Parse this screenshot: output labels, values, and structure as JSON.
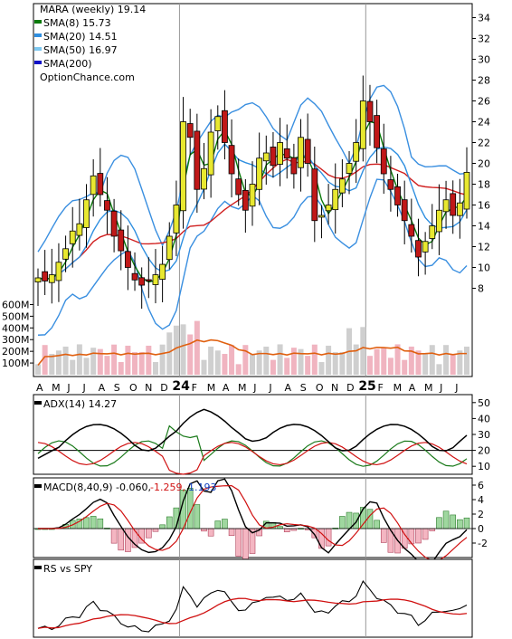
{
  "chart_data": [
    {
      "type": "candlestick",
      "legend": {
        "title": "MARA (weekly) 19.14",
        "items": [
          {
            "label": "SMA(8) 15.73",
            "color": "#0a7a0a"
          },
          {
            "label": "SMA(20) 14.51",
            "color": "#2f8fe0"
          },
          {
            "label": "SMA(50) 16.97",
            "color": "#7ec8f0"
          },
          {
            "label": "SMA(200)",
            "color": "#1010c8"
          }
        ],
        "source": "OptionChance.com"
      },
      "y_ticks": [
        "34",
        "32",
        "30",
        "28",
        "26",
        "24",
        "22",
        "20",
        "18",
        "16",
        "14",
        "12",
        "10",
        "8"
      ],
      "ylim": [
        7,
        35
      ],
      "x_ticks": [
        "A",
        "M",
        "J",
        "J",
        "A",
        "S",
        "O",
        "N",
        "D",
        "24",
        "F",
        "M",
        "A",
        "M",
        "J",
        "J",
        "A",
        "S",
        "O",
        "N",
        "D",
        "25",
        "F",
        "M",
        "A",
        "M",
        "J",
        "J"
      ],
      "volume_ticks": [
        "600M",
        "500M",
        "400M",
        "300M",
        "200M",
        "100M"
      ],
      "volume_ylim": [
        0,
        650
      ],
      "close_series": [
        9.0,
        8.7,
        9.3,
        10.5,
        11.8,
        13.5,
        14.2,
        16.5,
        18.8,
        17.0,
        15.5,
        13.0,
        11.6,
        10.0,
        8.8,
        8.3,
        8.7,
        9.3,
        10.3,
        13.0,
        16.0,
        24.0,
        22.5,
        17.5,
        19.5,
        23.0,
        24.5,
        22.0,
        19.0,
        17.0,
        15.5,
        18.0,
        20.5,
        21.0,
        19.8,
        22.0,
        20.5,
        19.0,
        22.5,
        20.0,
        14.5,
        15.0,
        16.0,
        17.5,
        18.5,
        20.0,
        22.0,
        26.0,
        24.0,
        21.5,
        19.0,
        17.5,
        16.0,
        14.5,
        13.0,
        11.0,
        12.5,
        14.0,
        15.5,
        16.5,
        15.0,
        16.2,
        19.14
      ]
    },
    {
      "type": "line",
      "title": "ADX(14) 14.27",
      "y_ticks": [
        "50",
        "40",
        "30",
        "20",
        "10"
      ],
      "ylim": [
        5,
        55
      ],
      "reference_line": 20
    },
    {
      "type": "bar",
      "title": "MACD(8,40,9) -0.060,",
      "values_labels": [
        "-1.259,",
        "1.193"
      ],
      "values_colors": [
        "#d01010",
        "#1040c0"
      ],
      "y_ticks": [
        "6",
        "4",
        "2",
        "0",
        "-2"
      ],
      "ylim": [
        -4,
        7
      ]
    },
    {
      "type": "line",
      "title": "RS vs SPY"
    }
  ],
  "colors": {
    "up": "#e8e830",
    "down": "#c01818",
    "sma8": "#0a7a0a",
    "sma20": "#2f8fe0",
    "sma50": "#7ec8f0",
    "sma200": "#1010c8",
    "long_sma": "#d02020",
    "bollinger": "#3a8fe0",
    "volume_up": "#cfcfcf",
    "volume_down": "#f0b4c0",
    "volume_avg": "#e06010",
    "adx": "#000000",
    "plus_di": "#1a7a1a",
    "minus_di": "#d01010",
    "rs": "#000000",
    "rs_ma": "#d01010"
  }
}
